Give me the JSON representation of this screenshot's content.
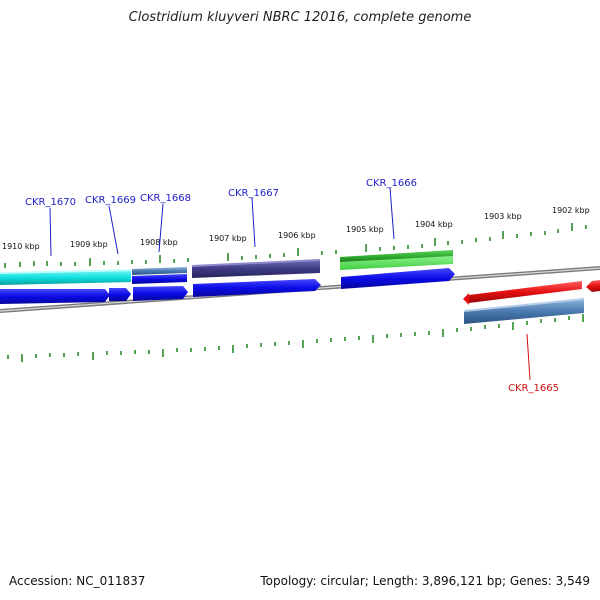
{
  "header": {
    "title": "Clostridium kluyveri NBRC 12016, complete genome"
  },
  "footer": {
    "accession": "Accession: NC_011837",
    "topology": "Topology: circular; Length: 3,896,121 bp; Genes: 3,549"
  },
  "ticks": [
    "1910 kbp",
    "1909 kbp",
    "1908 kbp",
    "1907 kbp",
    "1906 kbp",
    "1905 kbp",
    "1904 kbp",
    "1903 kbp",
    "1902 kbp"
  ],
  "genes": {
    "ckr_1670": "CKR_1670",
    "ckr_1669": "CKR_1669",
    "ckr_1668": "CKR_1668",
    "ckr_1667": "CKR_1667",
    "ckr_1666": "CKR_1666",
    "ckr_1665": "CKR_1665"
  },
  "colors": {
    "cds_forward": "#0b0be6",
    "cds_reverse": "#e61010",
    "gene_cyan": "#10e6e6",
    "gene_slate": "#4a7ab0",
    "gene_indigo": "#3f3a86",
    "gene_green": "#2ea82e",
    "backbone": "#7a7a7a",
    "tick": "#2a8a2a"
  }
}
